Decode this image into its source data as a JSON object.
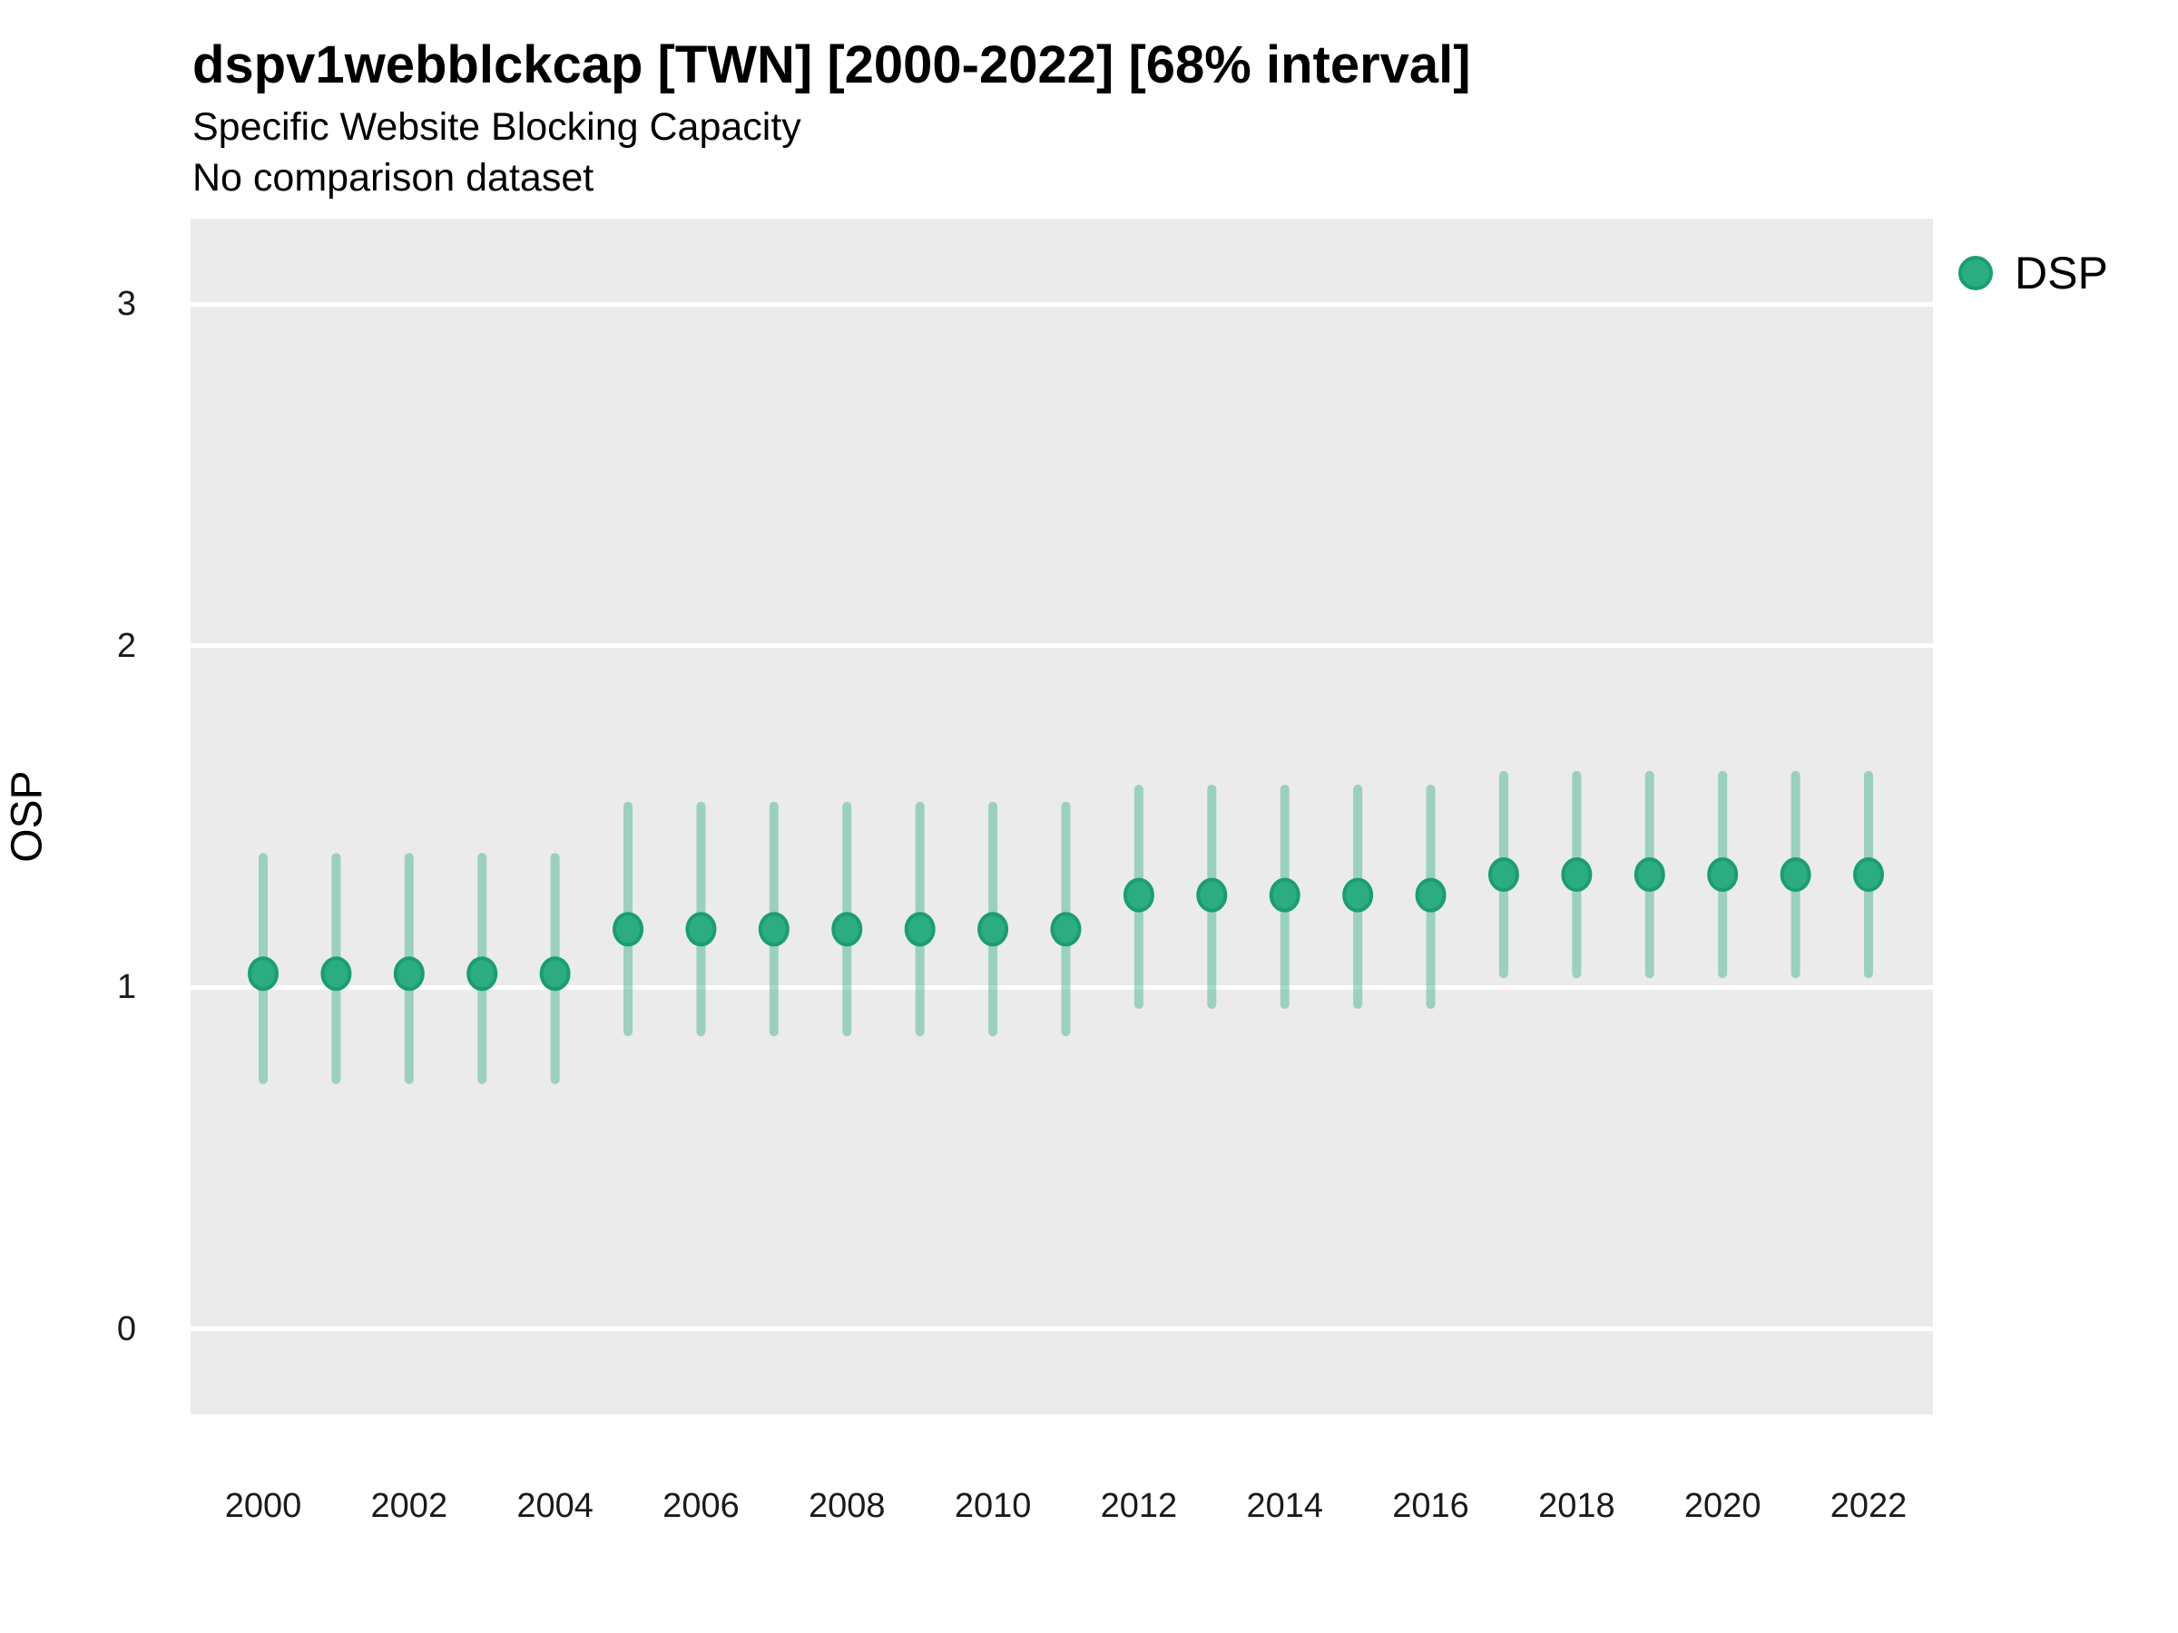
{
  "chart_data": {
    "type": "pointrange",
    "title": "dspv1webblckcap [TWN] [2000-2022] [68% interval]",
    "subtitle": "Specific Website Blocking Capacity",
    "note": "No comparison dataset",
    "xlabel": "",
    "ylabel": "OSP",
    "x": [
      2000,
      2001,
      2002,
      2003,
      2004,
      2005,
      2006,
      2007,
      2008,
      2009,
      2010,
      2011,
      2012,
      2013,
      2014,
      2015,
      2016,
      2017,
      2018,
      2019,
      2020,
      2021,
      2022
    ],
    "series": [
      {
        "name": "DSP",
        "values": [
          1.04,
          1.04,
          1.04,
          1.04,
          1.04,
          1.17,
          1.17,
          1.17,
          1.17,
          1.17,
          1.17,
          1.17,
          1.27,
          1.27,
          1.27,
          1.27,
          1.27,
          1.33,
          1.33,
          1.33,
          1.33,
          1.33,
          1.33
        ],
        "lower": [
          0.73,
          0.73,
          0.73,
          0.73,
          0.73,
          0.87,
          0.87,
          0.87,
          0.87,
          0.87,
          0.87,
          0.87,
          0.95,
          0.95,
          0.95,
          0.95,
          0.95,
          1.04,
          1.04,
          1.04,
          1.04,
          1.04,
          1.04
        ],
        "upper": [
          1.38,
          1.38,
          1.38,
          1.38,
          1.38,
          1.53,
          1.53,
          1.53,
          1.53,
          1.53,
          1.53,
          1.53,
          1.58,
          1.58,
          1.58,
          1.58,
          1.58,
          1.62,
          1.62,
          1.62,
          1.62,
          1.62,
          1.62
        ]
      }
    ],
    "ylim": [
      -0.25,
      3.25
    ],
    "yticks": [
      0,
      1,
      2,
      3
    ],
    "xticks": [
      2000,
      2002,
      2004,
      2006,
      2008,
      2010,
      2012,
      2014,
      2016,
      2018,
      2020,
      2022
    ],
    "grid": "horizontal-only",
    "legend_position": "right-top",
    "colors": {
      "point": "#2CAD80",
      "point_stroke": "#1A9E71",
      "interval": "#2BAB80",
      "interval_alpha": 0.42,
      "panel_bg": "#EBEBEB",
      "grid": "#FFFFFF"
    }
  }
}
